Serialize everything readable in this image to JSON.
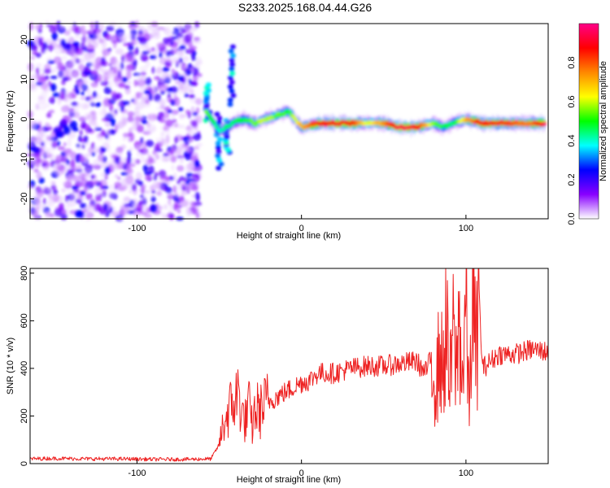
{
  "title": "S233.2025.168.04.44.G26",
  "chart_data": [
    {
      "type": "heatmap",
      "xlabel": "Height of straight line (km)",
      "ylabel": "Frequency (Hz)",
      "xlim": [
        -165,
        150
      ],
      "ylim": [
        -25,
        24
      ],
      "xticks": [
        "-100",
        "0",
        "100"
      ],
      "xtick_values": [
        -100,
        0,
        100
      ],
      "yticks": [
        "20",
        "10",
        "0",
        "-10",
        "-20"
      ],
      "ytick_values": [
        20,
        10,
        0,
        -10,
        -20
      ],
      "noise_region": {
        "x_from": -165,
        "x_to": -60,
        "y_from": -25,
        "y_to": 24
      },
      "doppler_track": {
        "x": [
          -58,
          -50,
          -42,
          -35,
          -28,
          -22,
          -15,
          -8,
          0,
          10,
          20,
          30,
          40,
          50,
          60,
          70,
          80,
          86,
          92,
          100,
          110,
          120,
          130,
          140,
          148
        ],
        "frequency_hz": [
          2,
          -3,
          -1,
          0,
          -1,
          0,
          1,
          2,
          -2,
          -1,
          -1,
          -1,
          -1,
          -1,
          -2,
          -2,
          -1,
          -2,
          -1,
          0,
          -1,
          -1,
          -1,
          -1,
          -1
        ],
        "normalized_amplitude": [
          0.55,
          0.4,
          0.45,
          0.5,
          0.55,
          0.6,
          0.55,
          0.5,
          0.7,
          0.85,
          0.9,
          0.88,
          0.6,
          0.75,
          0.95,
          0.9,
          0.55,
          0.5,
          0.45,
          0.7,
          0.9,
          0.85,
          0.8,
          0.75,
          0.95
        ]
      },
      "colorbar": {
        "label": "Normalized spectral amplitude",
        "range": [
          0.0,
          1.0
        ],
        "ticks": [
          "0.0",
          "0.2",
          "0.4",
          "0.6",
          "0.8"
        ],
        "tick_values": [
          0.0,
          0.2,
          0.4,
          0.6,
          0.8
        ],
        "colormap": [
          "#ffffff",
          "#8800ff",
          "#0000ff",
          "#00ffff",
          "#00ff00",
          "#ffff00",
          "#ff8800",
          "#ff0000",
          "#ff0088"
        ]
      }
    },
    {
      "type": "line",
      "xlabel": "Height of straight line (km)",
      "ylabel": "SNR (10 * v/v)",
      "xlim": [
        -165,
        150
      ],
      "ylim": [
        0,
        820
      ],
      "xticks": [
        "-100",
        "0",
        "100"
      ],
      "xtick_values": [
        -100,
        0,
        100
      ],
      "yticks": [
        "800",
        "600",
        "400",
        "200",
        "0"
      ],
      "ytick_values": [
        800,
        600,
        400,
        200,
        0
      ],
      "series": [
        {
          "color": "#ee2222",
          "x": [
            -165,
            -150,
            -130,
            -110,
            -90,
            -70,
            -55,
            -50,
            -48,
            -45,
            -42,
            -40,
            -38,
            -36,
            -34,
            -32,
            -30,
            -28,
            -25,
            -22,
            -20,
            -15,
            -10,
            -5,
            0,
            5,
            10,
            20,
            30,
            40,
            50,
            60,
            70,
            75,
            80,
            82,
            84,
            86,
            88,
            90,
            92,
            94,
            96,
            98,
            100,
            102,
            104,
            106,
            108,
            110,
            120,
            130,
            140,
            150
          ],
          "y": [
            20,
            22,
            20,
            20,
            18,
            18,
            20,
            80,
            150,
            210,
            250,
            270,
            300,
            200,
            180,
            240,
            150,
            230,
            220,
            250,
            260,
            280,
            300,
            320,
            340,
            350,
            380,
            380,
            400,
            410,
            410,
            420,
            430,
            380,
            460,
            300,
            500,
            350,
            620,
            280,
            550,
            400,
            600,
            350,
            700,
            200,
            780,
            420,
            700,
            400,
            460,
            460,
            480,
            470
          ]
        }
      ]
    }
  ]
}
